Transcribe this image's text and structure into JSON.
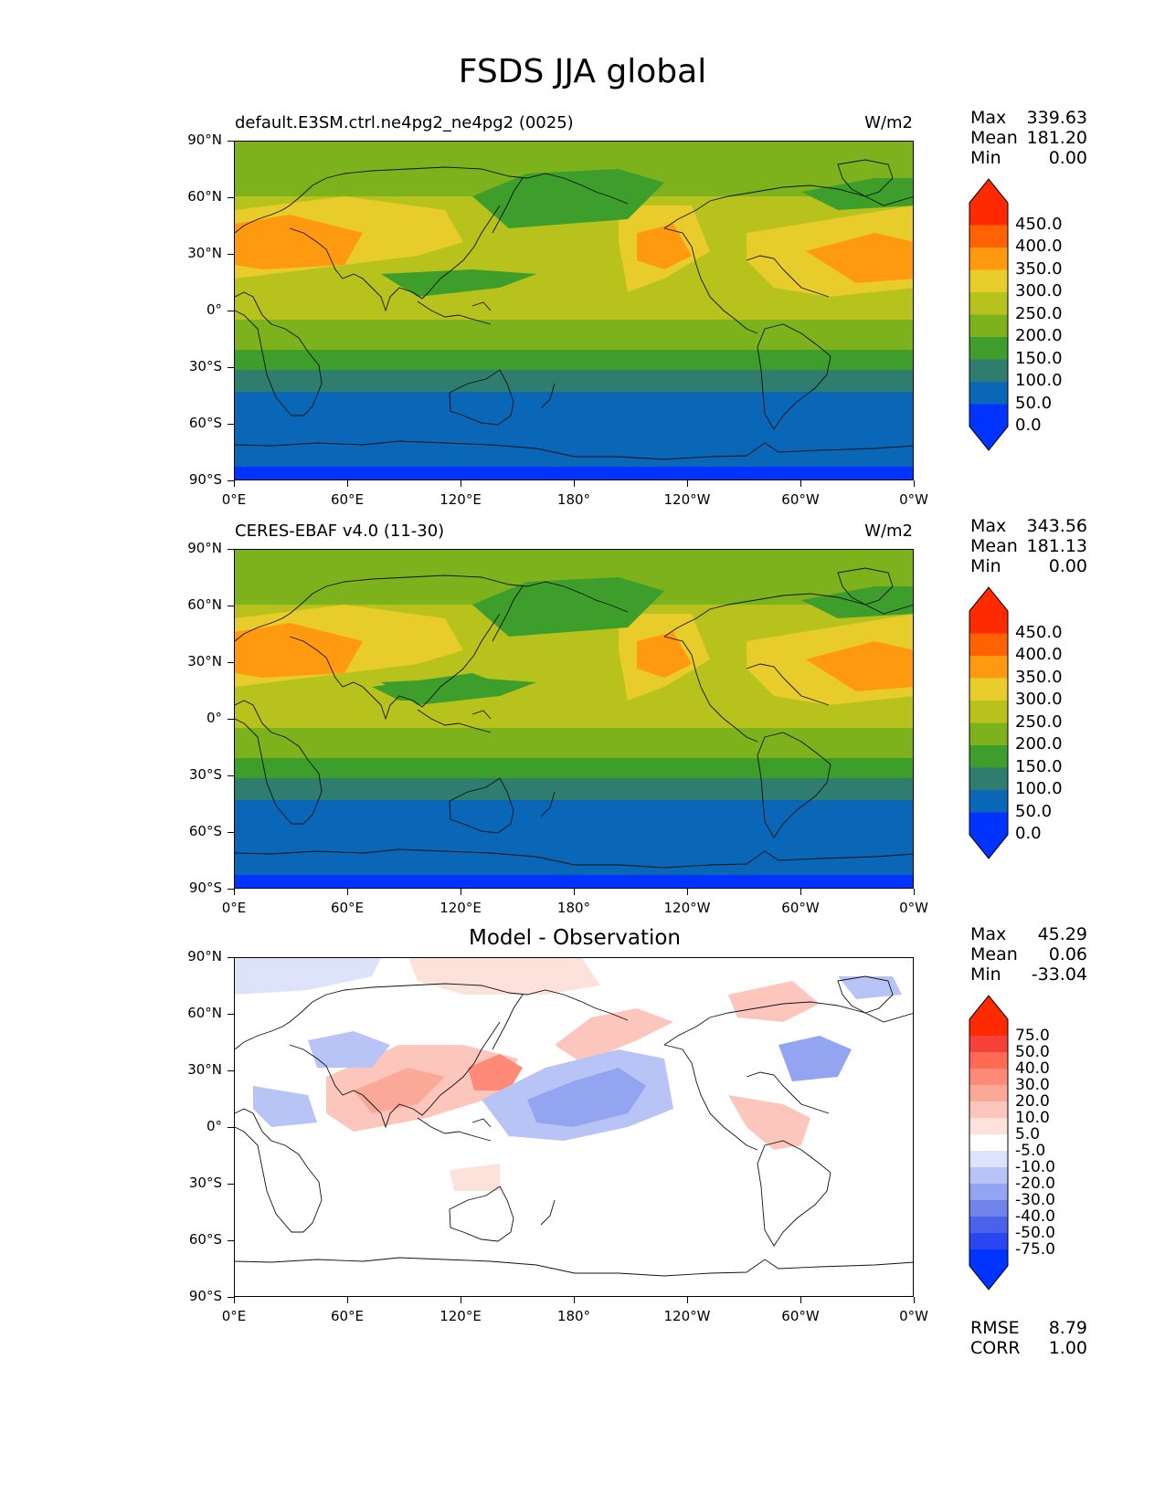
{
  "title": "FSDS JJA global",
  "axes": {
    "y_labels": [
      "90°N",
      "60°N",
      "30°N",
      "0°",
      "30°S",
      "60°S",
      "90°S"
    ],
    "x_labels": [
      "0°E",
      "60°E",
      "120°E",
      "180°",
      "120°W",
      "60°W",
      "0°W"
    ]
  },
  "panels": [
    {
      "title_left": "default.E3SM.ctrl.ne4pg2_ne4pg2 (0025)",
      "title_right": "W/m2",
      "title_center": "",
      "stats": {
        "max_label": "Max",
        "max": "339.63",
        "mean_label": "Mean",
        "mean": "181.20",
        "min_label": "Min",
        "min": "0.00"
      },
      "colorbar": {
        "labels": [
          "450.0",
          "400.0",
          "350.0",
          "300.0",
          "250.0",
          "200.0",
          "150.0",
          "100.0",
          "50.0",
          "0.0"
        ],
        "colors": [
          "#ff2a00",
          "#ff6200",
          "#ff9a10",
          "#e8cc2c",
          "#b8c21c",
          "#7db21c",
          "#3d9e2c",
          "#2e7d6e",
          "#0a66b6",
          "#0033ff"
        ]
      }
    },
    {
      "title_left": "CERES-EBAF v4.0 (11-30)",
      "title_right": "W/m2",
      "title_center": "",
      "stats": {
        "max_label": "Max",
        "max": "343.56",
        "mean_label": "Mean",
        "mean": "181.13",
        "min_label": "Min",
        "min": "0.00"
      },
      "colorbar": {
        "labels": [
          "450.0",
          "400.0",
          "350.0",
          "300.0",
          "250.0",
          "200.0",
          "150.0",
          "100.0",
          "50.0",
          "0.0"
        ],
        "colors": [
          "#ff2a00",
          "#ff6200",
          "#ff9a10",
          "#e8cc2c",
          "#b8c21c",
          "#7db21c",
          "#3d9e2c",
          "#2e7d6e",
          "#0a66b6",
          "#0033ff"
        ]
      }
    },
    {
      "title_left": "",
      "title_right": "",
      "title_center": "Model - Observation",
      "stats": {
        "max_label": "Max",
        "max": "45.29",
        "mean_label": "Mean",
        "mean": "0.06",
        "min_label": "Min",
        "min": "-33.04"
      },
      "colorbar": {
        "labels": [
          "75.0",
          "50.0",
          "40.0",
          "30.0",
          "20.0",
          "10.0",
          "5.0",
          "-5.0",
          "-10.0",
          "-20.0",
          "-30.0",
          "-40.0",
          "-50.0",
          "-75.0"
        ],
        "colors": [
          "#ff2a00",
          "#f5413a",
          "#ff6a55",
          "#ff8a78",
          "#faa898",
          "#fcc6bc",
          "#fde2dc",
          "#ffffff",
          "#dde3fb",
          "#b8c4f6",
          "#93a4f0",
          "#6f83ea",
          "#4a62ea",
          "#2a46f0",
          "#0033ff"
        ]
      },
      "error_stats": {
        "rmse_label": "RMSE",
        "rmse": "8.79",
        "corr_label": "CORR",
        "corr": "1.00"
      }
    }
  ]
}
